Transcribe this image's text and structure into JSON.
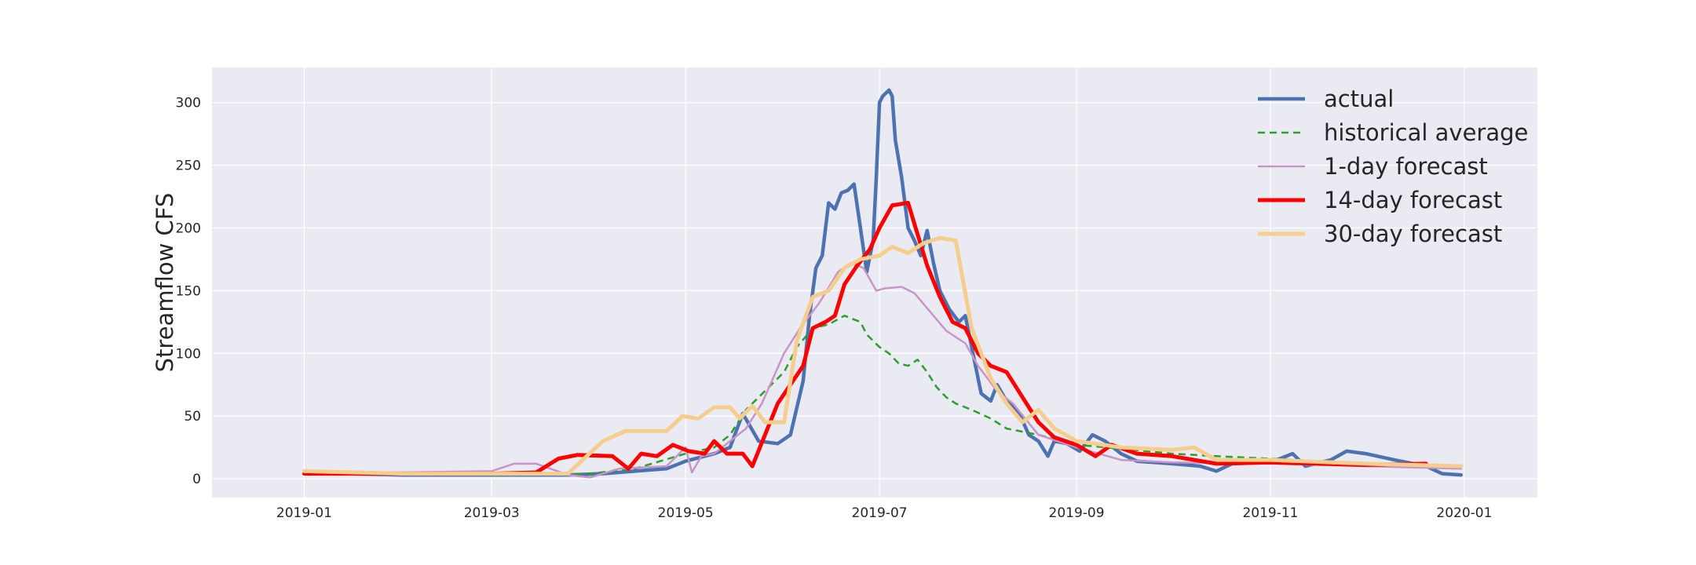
{
  "chart_data": {
    "type": "line",
    "title": "",
    "xlabel": "",
    "ylabel": "Streamflow CFS",
    "ylim": [
      -15,
      328
    ],
    "xlim": [
      "2018-12-03",
      "2020-01-24"
    ],
    "x_ticks": [
      "2019-01",
      "2019-03",
      "2019-05",
      "2019-07",
      "2019-09",
      "2019-11",
      "2020-01"
    ],
    "y_ticks": [
      0,
      50,
      100,
      150,
      200,
      250,
      300
    ],
    "grid": true,
    "legend_position": "top-right",
    "background": "#eaeaf2",
    "series": [
      {
        "name": "actual",
        "color": "#4c72b0",
        "style": "solid",
        "width": 4.5,
        "points": [
          [
            "2019-01-01",
            6
          ],
          [
            "2019-01-15",
            4
          ],
          [
            "2019-02-01",
            3
          ],
          [
            "2019-03-01",
            3
          ],
          [
            "2019-03-25",
            3
          ],
          [
            "2019-04-05",
            4
          ],
          [
            "2019-04-15",
            6
          ],
          [
            "2019-04-25",
            8
          ],
          [
            "2019-05-01",
            14
          ],
          [
            "2019-05-10",
            20
          ],
          [
            "2019-05-15",
            25
          ],
          [
            "2019-05-19",
            52
          ],
          [
            "2019-05-24",
            30
          ],
          [
            "2019-05-30",
            28
          ],
          [
            "2019-06-03",
            35
          ],
          [
            "2019-06-07",
            78
          ],
          [
            "2019-06-09",
            130
          ],
          [
            "2019-06-11",
            168
          ],
          [
            "2019-06-13",
            178
          ],
          [
            "2019-06-15",
            220
          ],
          [
            "2019-06-17",
            215
          ],
          [
            "2019-06-19",
            228
          ],
          [
            "2019-06-21",
            230
          ],
          [
            "2019-06-23",
            235
          ],
          [
            "2019-06-25",
            200
          ],
          [
            "2019-06-27",
            165
          ],
          [
            "2019-06-29",
            190
          ],
          [
            "2019-06-30",
            240
          ],
          [
            "2019-07-01",
            300
          ],
          [
            "2019-07-02",
            305
          ],
          [
            "2019-07-04",
            310
          ],
          [
            "2019-07-05",
            305
          ],
          [
            "2019-07-06",
            270
          ],
          [
            "2019-07-08",
            240
          ],
          [
            "2019-07-10",
            200
          ],
          [
            "2019-07-12",
            190
          ],
          [
            "2019-07-14",
            178
          ],
          [
            "2019-07-16",
            198
          ],
          [
            "2019-07-18",
            172
          ],
          [
            "2019-07-20",
            150
          ],
          [
            "2019-07-23",
            135
          ],
          [
            "2019-07-26",
            125
          ],
          [
            "2019-07-28",
            130
          ],
          [
            "2019-07-30",
            105
          ],
          [
            "2019-08-02",
            68
          ],
          [
            "2019-08-05",
            62
          ],
          [
            "2019-08-07",
            75
          ],
          [
            "2019-08-10",
            62
          ],
          [
            "2019-08-14",
            52
          ],
          [
            "2019-08-17",
            35
          ],
          [
            "2019-08-20",
            30
          ],
          [
            "2019-08-23",
            18
          ],
          [
            "2019-08-25",
            30
          ],
          [
            "2019-08-29",
            28
          ],
          [
            "2019-09-02",
            22
          ],
          [
            "2019-09-06",
            35
          ],
          [
            "2019-09-10",
            30
          ],
          [
            "2019-09-15",
            20
          ],
          [
            "2019-09-20",
            14
          ],
          [
            "2019-10-01",
            12
          ],
          [
            "2019-10-10",
            10
          ],
          [
            "2019-10-15",
            6
          ],
          [
            "2019-10-20",
            12
          ],
          [
            "2019-11-01",
            13
          ],
          [
            "2019-11-08",
            20
          ],
          [
            "2019-11-12",
            10
          ],
          [
            "2019-11-20",
            15
          ],
          [
            "2019-11-25",
            22
          ],
          [
            "2019-12-01",
            20
          ],
          [
            "2019-12-10",
            15
          ],
          [
            "2019-12-20",
            10
          ],
          [
            "2019-12-25",
            4
          ],
          [
            "2019-12-31",
            3
          ]
        ]
      },
      {
        "name": "historical average",
        "color": "#2ca02c",
        "style": "dashed",
        "width": 2.5,
        "points": [
          [
            "2019-01-01",
            5
          ],
          [
            "2019-02-01",
            4
          ],
          [
            "2019-03-01",
            3
          ],
          [
            "2019-04-01",
            4
          ],
          [
            "2019-04-15",
            8
          ],
          [
            "2019-05-01",
            20
          ],
          [
            "2019-05-10",
            25
          ],
          [
            "2019-05-15",
            35
          ],
          [
            "2019-05-20",
            55
          ],
          [
            "2019-05-26",
            70
          ],
          [
            "2019-06-01",
            85
          ],
          [
            "2019-06-05",
            105
          ],
          [
            "2019-06-10",
            120
          ],
          [
            "2019-06-15",
            123
          ],
          [
            "2019-06-20",
            130
          ],
          [
            "2019-06-25",
            125
          ],
          [
            "2019-06-27",
            115
          ],
          [
            "2019-07-01",
            105
          ],
          [
            "2019-07-04",
            100
          ],
          [
            "2019-07-07",
            92
          ],
          [
            "2019-07-10",
            90
          ],
          [
            "2019-07-13",
            95
          ],
          [
            "2019-07-16",
            85
          ],
          [
            "2019-07-19",
            73
          ],
          [
            "2019-07-22",
            65
          ],
          [
            "2019-07-25",
            60
          ],
          [
            "2019-07-30",
            55
          ],
          [
            "2019-08-05",
            48
          ],
          [
            "2019-08-10",
            40
          ],
          [
            "2019-08-20",
            35
          ],
          [
            "2019-09-01",
            27
          ],
          [
            "2019-09-15",
            24
          ],
          [
            "2019-10-01",
            20
          ],
          [
            "2019-10-15",
            18
          ],
          [
            "2019-11-01",
            16
          ],
          [
            "2019-12-01",
            12
          ],
          [
            "2019-12-31",
            8
          ]
        ]
      },
      {
        "name": "1-day forecast",
        "color": "#c994c7",
        "style": "solid",
        "width": 2.5,
        "points": [
          [
            "2019-01-01",
            6
          ],
          [
            "2019-02-01",
            5
          ],
          [
            "2019-03-01",
            6
          ],
          [
            "2019-03-08",
            12
          ],
          [
            "2019-03-15",
            12
          ],
          [
            "2019-03-25",
            3
          ],
          [
            "2019-04-01",
            1
          ],
          [
            "2019-04-10",
            8
          ],
          [
            "2019-04-25",
            10
          ],
          [
            "2019-05-01",
            25
          ],
          [
            "2019-05-03",
            5
          ],
          [
            "2019-05-06",
            18
          ],
          [
            "2019-05-10",
            20
          ],
          [
            "2019-05-15",
            30
          ],
          [
            "2019-05-20",
            40
          ],
          [
            "2019-05-25",
            60
          ],
          [
            "2019-06-01",
            100
          ],
          [
            "2019-06-06",
            120
          ],
          [
            "2019-06-12",
            140
          ],
          [
            "2019-06-18",
            165
          ],
          [
            "2019-06-22",
            172
          ],
          [
            "2019-06-26",
            168
          ],
          [
            "2019-06-30",
            150
          ],
          [
            "2019-07-03",
            152
          ],
          [
            "2019-07-08",
            153
          ],
          [
            "2019-07-12",
            148
          ],
          [
            "2019-07-18",
            130
          ],
          [
            "2019-07-22",
            118
          ],
          [
            "2019-07-28",
            108
          ],
          [
            "2019-08-01",
            90
          ],
          [
            "2019-08-07",
            70
          ],
          [
            "2019-08-12",
            60
          ],
          [
            "2019-08-20",
            35
          ],
          [
            "2019-09-01",
            25
          ],
          [
            "2019-09-15",
            15
          ],
          [
            "2019-10-01",
            13
          ],
          [
            "2019-11-01",
            12
          ],
          [
            "2019-12-01",
            10
          ],
          [
            "2019-12-31",
            8
          ]
        ]
      },
      {
        "name": "14-day forecast",
        "color": "#ff0000",
        "style": "solid",
        "width": 5,
        "points": [
          [
            "2019-01-01",
            4
          ],
          [
            "2019-02-01",
            4
          ],
          [
            "2019-03-01",
            4
          ],
          [
            "2019-03-15",
            5
          ],
          [
            "2019-03-22",
            16
          ],
          [
            "2019-03-28",
            19
          ],
          [
            "2019-04-08",
            18
          ],
          [
            "2019-04-13",
            8
          ],
          [
            "2019-04-17",
            20
          ],
          [
            "2019-04-22",
            18
          ],
          [
            "2019-04-27",
            27
          ],
          [
            "2019-05-02",
            22
          ],
          [
            "2019-05-07",
            20
          ],
          [
            "2019-05-10",
            30
          ],
          [
            "2019-05-14",
            20
          ],
          [
            "2019-05-19",
            20
          ],
          [
            "2019-05-22",
            10
          ],
          [
            "2019-05-26",
            35
          ],
          [
            "2019-05-30",
            60
          ],
          [
            "2019-06-03",
            75
          ],
          [
            "2019-06-07",
            90
          ],
          [
            "2019-06-10",
            120
          ],
          [
            "2019-06-14",
            125
          ],
          [
            "2019-06-17",
            130
          ],
          [
            "2019-06-20",
            155
          ],
          [
            "2019-06-24",
            170
          ],
          [
            "2019-06-28",
            183
          ],
          [
            "2019-07-01",
            200
          ],
          [
            "2019-07-05",
            218
          ],
          [
            "2019-07-10",
            220
          ],
          [
            "2019-07-13",
            195
          ],
          [
            "2019-07-16",
            170
          ],
          [
            "2019-07-20",
            145
          ],
          [
            "2019-07-24",
            125
          ],
          [
            "2019-07-28",
            120
          ],
          [
            "2019-08-01",
            100
          ],
          [
            "2019-08-05",
            90
          ],
          [
            "2019-08-10",
            85
          ],
          [
            "2019-08-15",
            65
          ],
          [
            "2019-08-20",
            45
          ],
          [
            "2019-08-25",
            33
          ],
          [
            "2019-09-01",
            27
          ],
          [
            "2019-09-07",
            18
          ],
          [
            "2019-09-12",
            27
          ],
          [
            "2019-09-20",
            20
          ],
          [
            "2019-10-01",
            18
          ],
          [
            "2019-10-15",
            12
          ],
          [
            "2019-11-01",
            13
          ],
          [
            "2019-12-01",
            11
          ],
          [
            "2019-12-20",
            12
          ]
        ]
      },
      {
        "name": "30-day forecast",
        "color": "#f5cd8c",
        "style": "solid",
        "width": 5,
        "points": [
          [
            "2019-01-01",
            6
          ],
          [
            "2019-02-01",
            4
          ],
          [
            "2019-03-01",
            4
          ],
          [
            "2019-03-25",
            4
          ],
          [
            "2019-04-05",
            30
          ],
          [
            "2019-04-12",
            38
          ],
          [
            "2019-04-25",
            38
          ],
          [
            "2019-04-30",
            50
          ],
          [
            "2019-05-05",
            48
          ],
          [
            "2019-05-10",
            57
          ],
          [
            "2019-05-15",
            57
          ],
          [
            "2019-05-18",
            48
          ],
          [
            "2019-05-22",
            58
          ],
          [
            "2019-05-26",
            45
          ],
          [
            "2019-06-01",
            45
          ],
          [
            "2019-06-05",
            110
          ],
          [
            "2019-06-10",
            145
          ],
          [
            "2019-06-15",
            150
          ],
          [
            "2019-06-20",
            168
          ],
          [
            "2019-06-25",
            175
          ],
          [
            "2019-07-01",
            178
          ],
          [
            "2019-07-05",
            185
          ],
          [
            "2019-07-10",
            180
          ],
          [
            "2019-07-15",
            188
          ],
          [
            "2019-07-20",
            192
          ],
          [
            "2019-07-25",
            190
          ],
          [
            "2019-07-30",
            120
          ],
          [
            "2019-08-05",
            80
          ],
          [
            "2019-08-10",
            60
          ],
          [
            "2019-08-15",
            45
          ],
          [
            "2019-08-20",
            55
          ],
          [
            "2019-08-25",
            40
          ],
          [
            "2019-09-01",
            30
          ],
          [
            "2019-09-15",
            25
          ],
          [
            "2019-10-01",
            23
          ],
          [
            "2019-10-08",
            25
          ],
          [
            "2019-10-15",
            15
          ],
          [
            "2019-11-01",
            15
          ],
          [
            "2019-12-01",
            12
          ],
          [
            "2019-12-31",
            10
          ]
        ]
      }
    ]
  }
}
